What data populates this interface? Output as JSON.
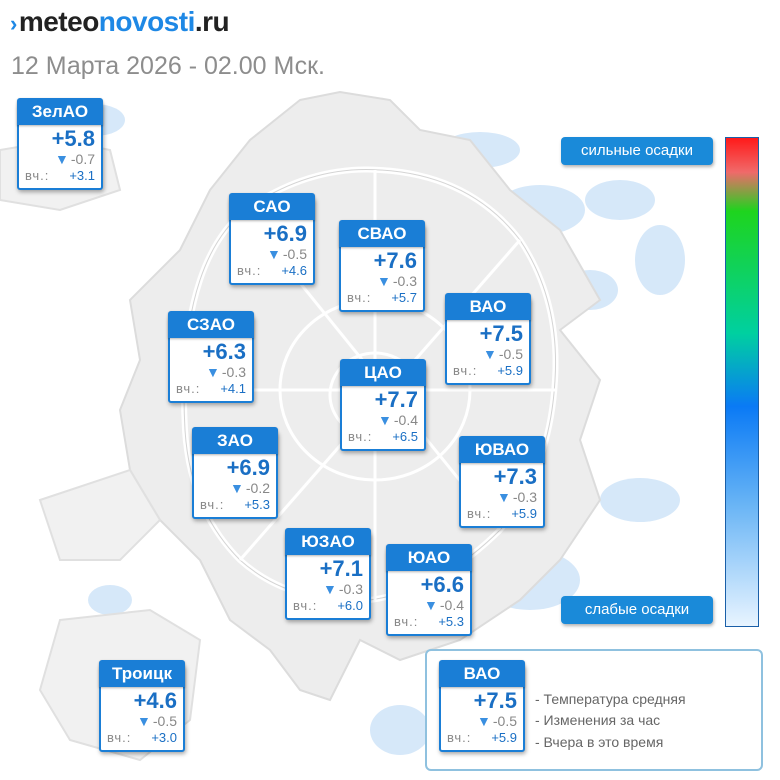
{
  "brand": {
    "prefix": "meteo",
    "highlight": "novosti",
    "suffix": ".ru"
  },
  "subtitle": "12 Марта 2026 - 02.00 Мск.",
  "colors": {
    "accent": "#1a7ed6",
    "text_blue": "#1a6fc4",
    "down_arrow": "#3a8fe0"
  },
  "districts": [
    {
      "name": "ЗелАО",
      "temp": "+5.8",
      "change": "-0.7",
      "yesterday_label": "вч.:",
      "yesterday": "+3.1"
    },
    {
      "name": "САО",
      "temp": "+6.9",
      "change": "-0.5",
      "yesterday_label": "вч.:",
      "yesterday": "+4.6"
    },
    {
      "name": "СВАО",
      "temp": "+7.6",
      "change": "-0.3",
      "yesterday_label": "вч.:",
      "yesterday": "+5.7"
    },
    {
      "name": "ВАО",
      "temp": "+7.5",
      "change": "-0.5",
      "yesterday_label": "вч.:",
      "yesterday": "+5.9"
    },
    {
      "name": "СЗАО",
      "temp": "+6.3",
      "change": "-0.3",
      "yesterday_label": "вч.:",
      "yesterday": "+4.1"
    },
    {
      "name": "ЦАО",
      "temp": "+7.7",
      "change": "-0.4",
      "yesterday_label": "вч.:",
      "yesterday": "+6.5"
    },
    {
      "name": "ЗАО",
      "temp": "+6.9",
      "change": "-0.2",
      "yesterday_label": "вч.:",
      "yesterday": "+5.3"
    },
    {
      "name": "ЮВАО",
      "temp": "+7.3",
      "change": "-0.3",
      "yesterday_label": "вч.:",
      "yesterday": "+5.9"
    },
    {
      "name": "ЮЗАО",
      "temp": "+7.1",
      "change": "-0.3",
      "yesterday_label": "вч.:",
      "yesterday": "+6.0"
    },
    {
      "name": "ЮАО",
      "temp": "+6.6",
      "change": "-0.4",
      "yesterday_label": "вч.:",
      "yesterday": "+5.3"
    },
    {
      "name": "Троицк",
      "temp": "+4.6",
      "change": "-0.5",
      "yesterday_label": "вч.:",
      "yesterday": "+3.0"
    }
  ],
  "precip_legend": {
    "strong": "сильные осадки",
    "weak": "слабые осадки"
  },
  "legend": {
    "example": {
      "name": "ВАО",
      "temp": "+7.5",
      "change": "-0.5",
      "yesterday_label": "вч.:",
      "yesterday": "+5.9"
    },
    "lines": [
      "- Температура средняя",
      "- Изменения за час",
      "- Вчера в это время"
    ]
  }
}
